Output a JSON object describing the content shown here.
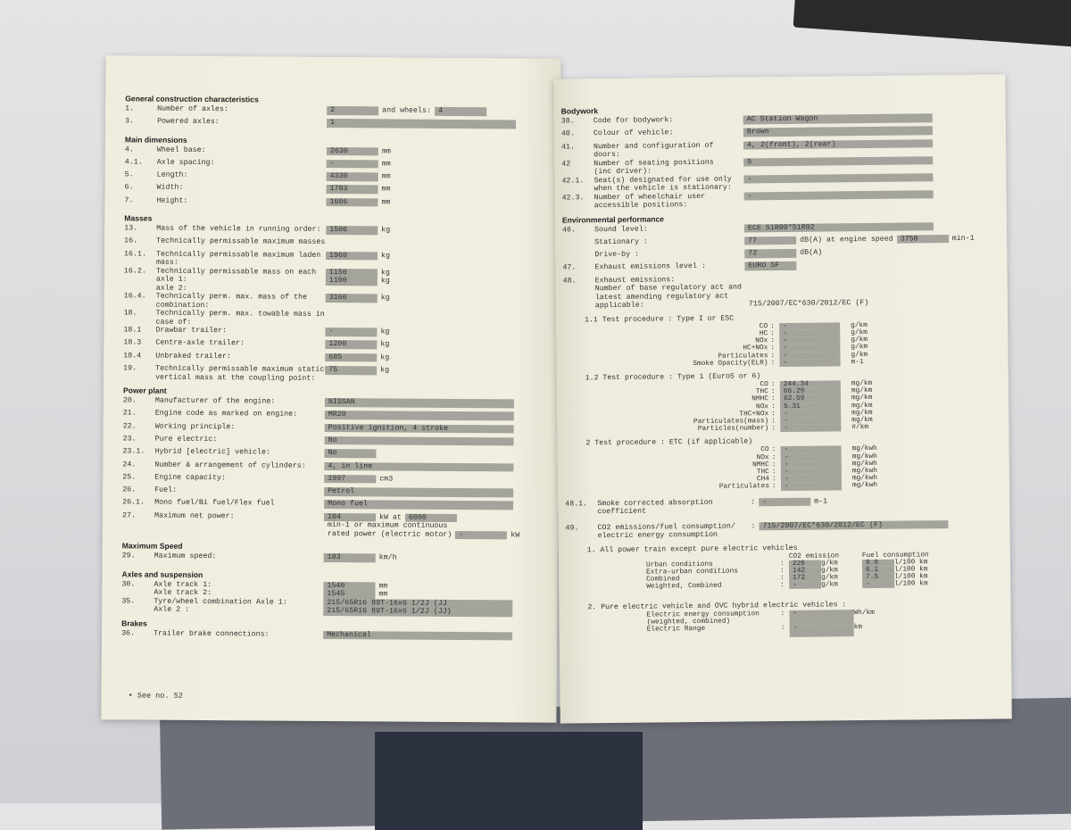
{
  "left": {
    "sections": [
      {
        "heading": "General construction characteristics",
        "rows": [
          {
            "num": "1.",
            "label": "Number of axles:",
            "parts": [
              {
                "t": "2",
                "shaded": true
              },
              {
                "t": "and wheels:"
              },
              {
                "t": "4",
                "shaded": true
              }
            ]
          },
          {
            "num": "3.",
            "label": "Powered axles:",
            "parts": [
              {
                "t": "1",
                "shaded": true,
                "wide": true
              }
            ]
          }
        ]
      },
      {
        "heading": "Main dimensions",
        "rows": [
          {
            "num": "4.",
            "label": "Wheel base:",
            "parts": [
              {
                "t": "2630",
                "shaded": true
              },
              {
                "t": "mm"
              }
            ]
          },
          {
            "num": "4.1.",
            "label": "Axle spacing:",
            "parts": [
              {
                "t": "-",
                "shaded": true
              },
              {
                "t": "mm"
              }
            ]
          },
          {
            "num": "5.",
            "label": "Length:",
            "parts": [
              {
                "t": "4330",
                "shaded": true
              },
              {
                "t": "mm"
              }
            ]
          },
          {
            "num": "6.",
            "label": "Width:",
            "parts": [
              {
                "t": "1783",
                "shaded": true
              },
              {
                "t": "mm"
              }
            ]
          },
          {
            "num": "7.",
            "label": "Height:",
            "parts": [
              {
                "t": "1606",
                "shaded": true
              },
              {
                "t": "mm"
              }
            ]
          }
        ]
      },
      {
        "heading": "Masses",
        "rows": [
          {
            "num": "13.",
            "label": "Mass of the vehicle in running order:",
            "parts": [
              {
                "t": "1506",
                "shaded": true
              },
              {
                "t": "kg"
              }
            ]
          },
          {
            "num": "16.",
            "label": "Technically permissable maximum masses",
            "parts": []
          },
          {
            "num": "16.1.",
            "label": "Technically permissable maximum laden mass:",
            "parts": [
              {
                "t": "1960",
                "shaded": true
              },
              {
                "t": "kg"
              }
            ]
          },
          {
            "num": "16.2.",
            "label": "Technically permissable mass on each axle 1:\naxle 2:",
            "parts": [
              {
                "t": "1150\n1100",
                "shaded": true
              },
              {
                "t": "kg\nkg"
              }
            ]
          },
          {
            "num": "16.4.",
            "label": "Technically perm. max. mass of the\ncombination:",
            "parts": [
              {
                "t": "3160",
                "shaded": true
              },
              {
                "t": "kg"
              }
            ]
          },
          {
            "num": "18.",
            "label": "Technically perm. max. towable mass in\ncase of:",
            "parts": []
          },
          {
            "num": "18.1",
            "label": "Drawbar trailer:",
            "parts": [
              {
                "t": "-",
                "shaded": true
              },
              {
                "t": "kg"
              }
            ]
          },
          {
            "num": "18.3",
            "label": "Centre-axle trailer:",
            "parts": [
              {
                "t": "1200",
                "shaded": true
              },
              {
                "t": "kg"
              }
            ]
          },
          {
            "num": "18.4",
            "label": "Unbraked trailer:",
            "parts": [
              {
                "t": "685",
                "shaded": true
              },
              {
                "t": "kg"
              }
            ]
          },
          {
            "num": "19.",
            "label": "Technically permissable maximum static\nvertical mass at the coupling point:",
            "parts": [
              {
                "t": "75",
                "shaded": true
              },
              {
                "t": "kg"
              }
            ]
          }
        ]
      },
      {
        "heading": "Power plant",
        "rows": [
          {
            "num": "20.",
            "label": "Manufacturer of the engine:",
            "parts": [
              {
                "t": "NISSAN",
                "shaded": true,
                "wide": true
              }
            ]
          },
          {
            "num": "21.",
            "label": "Engine code as marked on engine:",
            "parts": [
              {
                "t": "MR20",
                "shaded": true,
                "wide": true
              }
            ]
          },
          {
            "num": "22.",
            "label": "Working principle:",
            "parts": [
              {
                "t": "Positive ignition, 4 stroke",
                "shaded": true,
                "wide": true
              }
            ]
          },
          {
            "num": "23.",
            "label": "Pure electric:",
            "parts": [
              {
                "t": "No",
                "shaded": true,
                "wide": true
              }
            ]
          },
          {
            "num": "23.1.",
            "label": "Hybrid [electric] vehicle:",
            "parts": [
              {
                "t": "No",
                "shaded": true
              }
            ]
          },
          {
            "num": "24.",
            "label": "Number & arrangement of cylinders:",
            "parts": [
              {
                "t": "4, in line",
                "shaded": true,
                "wide": true
              }
            ]
          },
          {
            "num": "25.",
            "label": "Engine capacity:",
            "parts": [
              {
                "t": "1997",
                "shaded": true
              },
              {
                "t": "cm3"
              }
            ]
          },
          {
            "num": "26.",
            "label": "Fuel:",
            "parts": [
              {
                "t": "Petrol",
                "shaded": true,
                "wide": true
              }
            ]
          },
          {
            "num": "26.1.",
            "label": "Mono fuel/Bi fuel/Flex fuel",
            "parts": [
              {
                "t": "Mono fuel",
                "shaded": true,
                "wide": true
              }
            ]
          },
          {
            "num": "27.",
            "label": "Maximum net power:",
            "parts": [
              {
                "t": "104",
                "shaded": true
              },
              {
                "t": "kW at"
              },
              {
                "t": "6000",
                "shaded": true
              },
              {
                "t": "min-1 or maximum continuous"
              },
              {
                "t": "rated power (electric motor)"
              },
              {
                "t": "-",
                "shaded": true
              },
              {
                "t": "kW"
              }
            ]
          }
        ]
      },
      {
        "heading": "Maximum Speed",
        "rows": [
          {
            "num": "29.",
            "label": "Maximum speed:",
            "parts": [
              {
                "t": "183",
                "shaded": true
              },
              {
                "t": "km/h"
              }
            ]
          }
        ]
      },
      {
        "heading": "Axles and suspension",
        "rows": [
          {
            "num": "30.",
            "label": "Axle track 1:\nAxle track 2:",
            "parts": [
              {
                "t": "1540\n1545",
                "shaded": true
              },
              {
                "t": "mm\nmm"
              }
            ]
          },
          {
            "num": "35.",
            "label": "Tyre/wheel combination Axle 1:\nAxle 2 :",
            "parts": [
              {
                "t": "215/65R16 89T-16x6 1/2J (JJ\n215/65R16 89T-16x6 1/2J (JJ)",
                "shaded": true,
                "wide": true
              }
            ]
          }
        ]
      },
      {
        "heading": "Brakes",
        "rows": [
          {
            "num": "36.",
            "label": "Trailer brake connections:",
            "parts": [
              {
                "t": "Mechanical",
                "shaded": true,
                "wide": true
              }
            ]
          }
        ]
      }
    ],
    "footnote": "• See no. 52"
  },
  "right": {
    "sections": [
      {
        "heading": "Bodywork",
        "rows": [
          {
            "num": "38.",
            "label": "Code for bodywork:",
            "parts": [
              {
                "t": "AC Station Wagon",
                "shaded": true,
                "wide": true
              }
            ]
          },
          {
            "num": "40.",
            "label": "Colour of vehicle:",
            "parts": [
              {
                "t": "Brown",
                "shaded": true,
                "wide": true
              }
            ]
          },
          {
            "num": "41.",
            "label": "Number and configuration of doors:",
            "parts": [
              {
                "t": "4, 2(front), 2(rear)",
                "shaded": true,
                "wide": true
              }
            ]
          },
          {
            "num": "42",
            "label": "Number of seating positions\n(inc driver):",
            "parts": [
              {
                "t": "5",
                "shaded": true,
                "wide": true
              }
            ]
          },
          {
            "num": "42.1.",
            "label": "Seat(s) designated for use only\nwhen the vehicle is stationary:",
            "parts": [
              {
                "t": "-",
                "shaded": true,
                "wide": true
              }
            ]
          },
          {
            "num": "42.3.",
            "label": "Number of wheelchair user\naccessible positions:",
            "parts": [
              {
                "t": "-",
                "shaded": true,
                "wide": true
              }
            ]
          }
        ]
      },
      {
        "heading": "Environmental performance",
        "rows": [
          {
            "num": "46.",
            "label": "Sound level:",
            "parts": [
              {
                "t": "ECE 51R00*51R02",
                "shaded": true,
                "wide": true
              }
            ]
          },
          {
            "num": "",
            "label": "              Stationary    :",
            "parts": [
              {
                "t": "77",
                "shaded": true
              },
              {
                "t": "dB(A) at engine speed"
              },
              {
                "t": "3750",
                "shaded": true
              },
              {
                "t": "min-1"
              }
            ]
          },
          {
            "num": "",
            "label": "              Drive-by      :",
            "parts": [
              {
                "t": "72",
                "shaded": true
              },
              {
                "t": "dB(A)"
              }
            ]
          },
          {
            "num": "47.",
            "label": "Exhaust emissions level :",
            "parts": [
              {
                "t": "EURO 5F",
                "shaded": true
              }
            ]
          },
          {
            "num": "48.",
            "label": "Exhaust emissions:\nNumber of base regulatory act and\nlatest amending regulatory act\napplicable:",
            "parts": [
              {
                "t": "\n\n\n715/2007/EC*630/2012/EC (F)"
              }
            ]
          }
        ]
      }
    ],
    "tests": [
      {
        "title": "1.1 Test procedure : Type I or ESC",
        "rows": [
          {
            "l": "CO",
            "v": "-",
            "u": "g/km"
          },
          {
            "l": "HC",
            "v": "-",
            "u": "g/km"
          },
          {
            "l": "NOx",
            "v": "-",
            "u": "g/km"
          },
          {
            "l": "HC+NOx",
            "v": "-",
            "u": "g/km"
          },
          {
            "l": "Particulates",
            "v": "-",
            "u": "g/km"
          },
          {
            "l": "Smoke Opacity(ELR)",
            "v": "-",
            "u": "m-1"
          }
        ]
      },
      {
        "title": "1.2 Test procedure : Type 1 (Euro5 or 6)",
        "rows": [
          {
            "l": "CO",
            "v": "244.34",
            "u": "mg/km"
          },
          {
            "l": "THC",
            "v": "66.29",
            "u": "mg/km"
          },
          {
            "l": "NMHC",
            "v": "62.59",
            "u": "mg/km"
          },
          {
            "l": "NOx",
            "v": "5.31",
            "u": "mg/km"
          },
          {
            "l": "THC+NOx",
            "v": "-",
            "u": "mg/km"
          },
          {
            "l": "Particulates(mass)",
            "v": "-",
            "u": "mg/km"
          },
          {
            "l": "Particles(number)",
            "v": "-",
            "u": "#/km"
          }
        ]
      },
      {
        "title": "2 Test procedure : ETC (if applicable)",
        "rows": [
          {
            "l": "CO",
            "v": "-",
            "u": "mg/kwh"
          },
          {
            "l": "NOx",
            "v": "-",
            "u": "mg/kwh"
          },
          {
            "l": "NMHC",
            "v": "-",
            "u": "mg/kwh"
          },
          {
            "l": "THC",
            "v": "-",
            "u": "mg/kwh"
          },
          {
            "l": "CH4",
            "v": "-",
            "u": "mg/kwh"
          },
          {
            "l": "Particulates",
            "v": "-",
            "u": "mg/kwh"
          }
        ]
      }
    ],
    "smoke": {
      "num": "48.1.",
      "label": "Smoke corrected absorption\ncoefficient",
      "value": "-",
      "unit": "m-1"
    },
    "co2": {
      "num": "49.",
      "label": "CO2 emissions/fuel consumption/\nelectric energy consumption",
      "value": "715/2007/EC*630/2012/EC (F)",
      "section1": "1. All power train except pure electric vehicles",
      "col_co2": "CO2 emission",
      "col_fuel": "Fuel consumption",
      "rows": [
        {
          "l": "Urban conditions",
          "co2": "226",
          "co2u": "g/km",
          "fuel": "9.9",
          "fuelu": "l/100 km"
        },
        {
          "l": "Extra-urban conditions",
          "co2": "142",
          "co2u": "g/km",
          "fuel": "6.1",
          "fuelu": "l/100 km"
        },
        {
          "l": "Combined",
          "co2": "172",
          "co2u": "g/km",
          "fuel": "7.5",
          "fuelu": "l/100 km"
        },
        {
          "l": "Weighted, Combined",
          "co2": "-",
          "co2u": "g/km",
          "fuel": "-",
          "fuelu": "l/100 km"
        }
      ],
      "section2": "2. Pure electric vehicle and OVC hybrid electric vehicles :",
      "elec": [
        {
          "l": "Electric energy consumption\n(weighted, combined)",
          "v": "-",
          "u": "Wh/km"
        },
        {
          "l": "Electric Range",
          "v": "-",
          "u": "km"
        }
      ]
    }
  },
  "colors": {
    "paper": "#f0eedf",
    "shade": "#a4a39c"
  }
}
